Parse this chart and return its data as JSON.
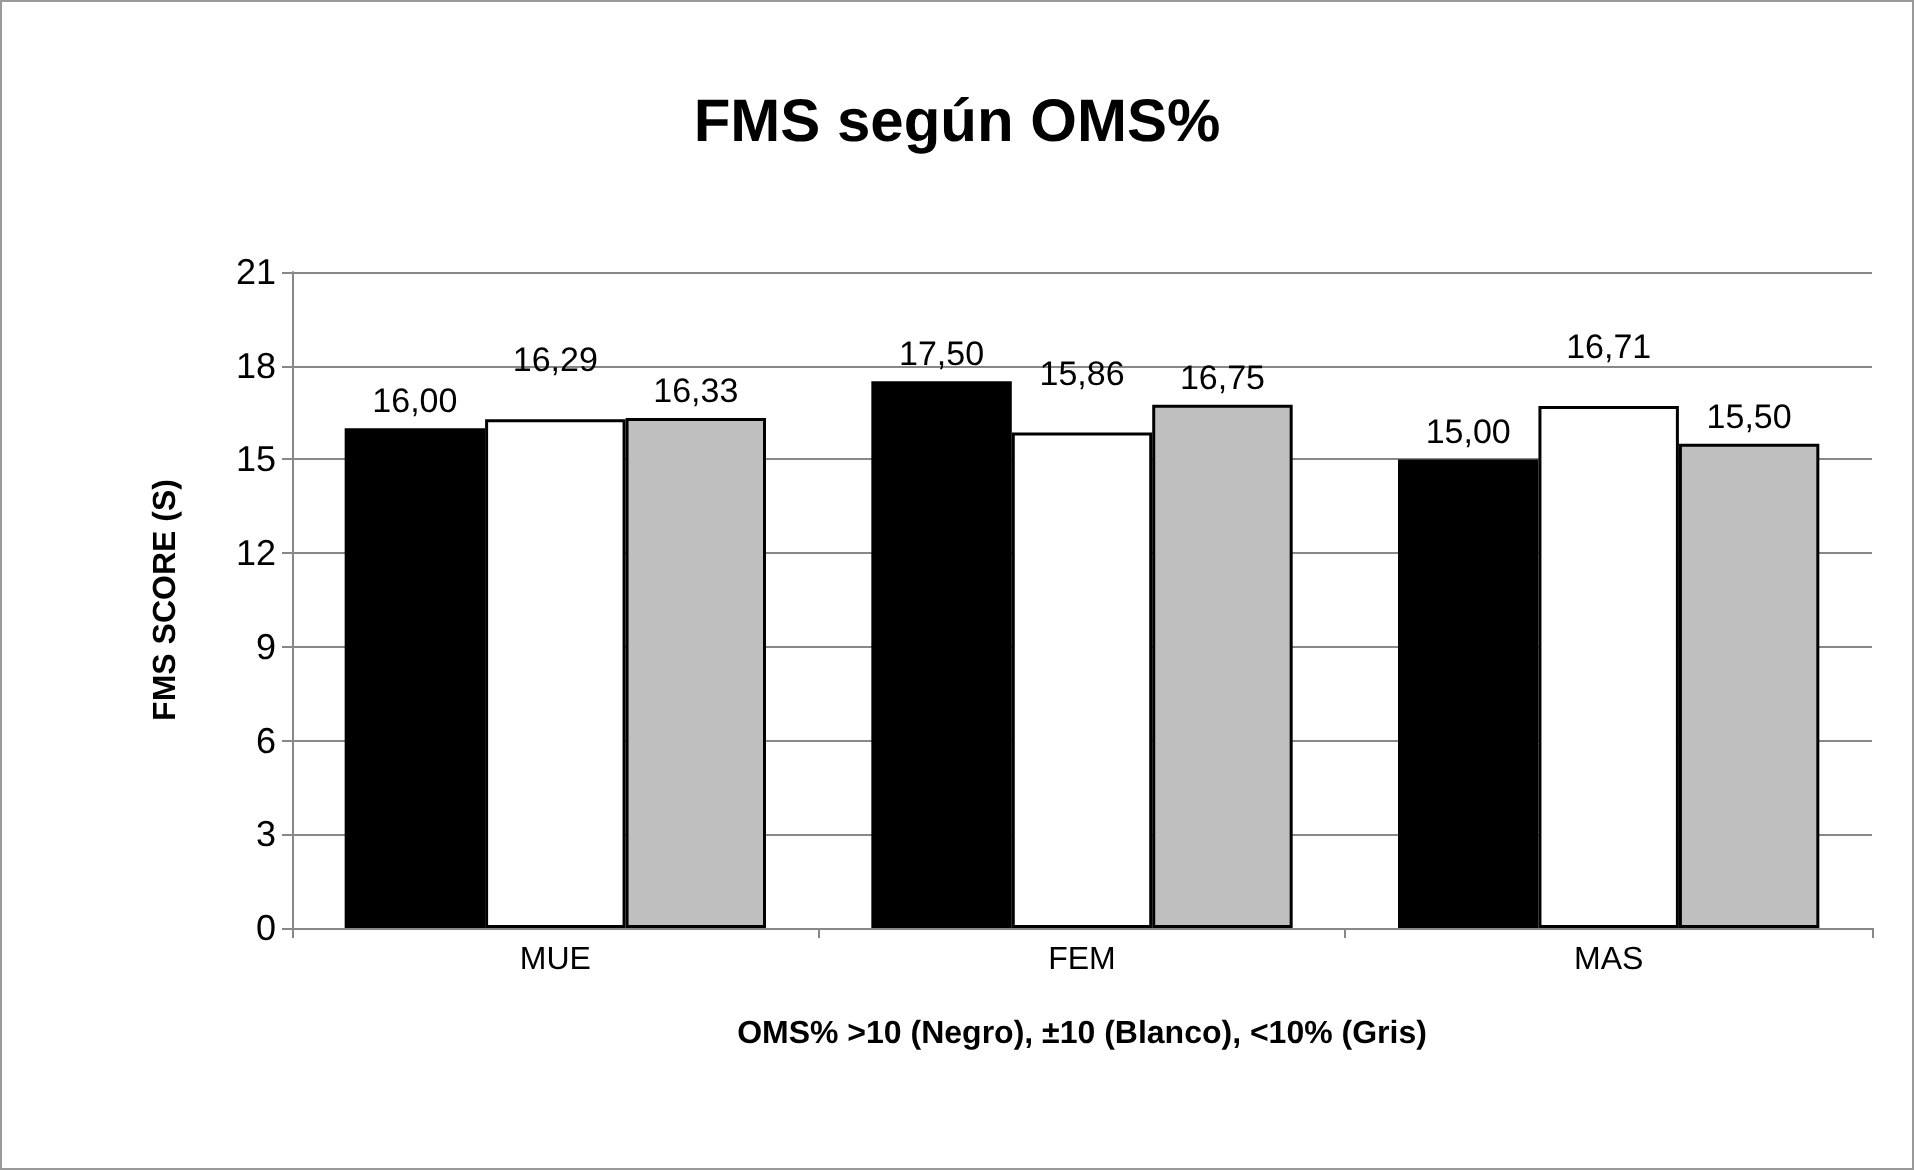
{
  "chart_data": {
    "type": "bar",
    "title": "FMS según OMS%",
    "ylabel": "FMS SCORE (S)",
    "xlabel": "OMS% >10 (Negro), ±10 (Blanco), <10% (Gris)",
    "categories": [
      "MUE",
      "FEM",
      "MAS"
    ],
    "series": [
      {
        "color": "#000000",
        "values": [
          16.0,
          17.5,
          15.0
        ],
        "value_labels": [
          "16,00",
          "17,50",
          "15,00"
        ]
      },
      {
        "color": "#ffffff",
        "values": [
          16.29,
          15.86,
          16.71
        ],
        "value_labels": [
          "16,29",
          "15,86",
          "16,71"
        ]
      },
      {
        "color": "#bfbfbf",
        "values": [
          16.33,
          16.75,
          15.5
        ],
        "value_labels": [
          "16,33",
          "16,75",
          "15,50"
        ]
      }
    ],
    "ylim": [
      0,
      21
    ],
    "yticks": [
      0,
      3,
      6,
      9,
      12,
      15,
      18,
      21
    ],
    "grid": "y"
  }
}
